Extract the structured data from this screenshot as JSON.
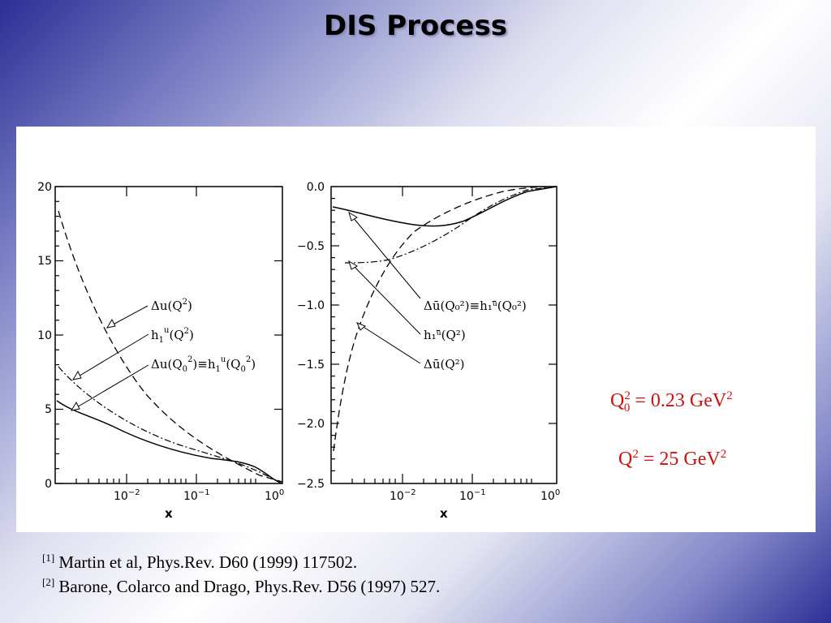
{
  "slide": {
    "title": "DIS Process"
  },
  "figure": {
    "left_plot": {
      "y_ticks": [
        "0",
        "5",
        "10",
        "15",
        "20"
      ],
      "x_ticks": [
        "10",
        "10",
        "10"
      ],
      "x_tick_exponents": [
        "−2",
        "−1",
        "0"
      ],
      "x_label": "x",
      "labels": [
        {
          "main": "Δu(Q",
          "sup": "2",
          "rest": ")"
        },
        {
          "main": "h",
          "sub": "1",
          "sup": "u",
          "rest": "(Q²)"
        },
        {
          "main": "Δu(Q",
          "sub": "0",
          "sup": "2",
          "rest": ")≡h₁ᵘ(Q₀²)"
        }
      ]
    },
    "right_plot": {
      "y_ticks": [
        "0.0",
        "−0.5",
        "−1.0",
        "−1.5",
        "−2.0",
        "−2.5"
      ],
      "x_ticks": [
        "10",
        "10",
        "10"
      ],
      "x_tick_exponents": [
        "−2",
        "−1",
        "0"
      ],
      "x_label": "x",
      "labels": [
        {
          "text": "Δū(Q₀²)≡h₁ᵘ̄(Q₀²)"
        },
        {
          "text": "h₁ᵘ̄(Q²)"
        },
        {
          "text": "Δū(Q²)"
        }
      ]
    },
    "equations": {
      "q0": {
        "base": "Q",
        "sub": "0",
        "sup": "2",
        "rhs": "= 0.23 GeV",
        "rhs_sup": "2"
      },
      "q": {
        "base": "Q",
        "sup": "2",
        "rhs": "= 25 GeV",
        "rhs_sup": "2"
      }
    }
  },
  "references": [
    {
      "num": "[1]",
      "text": "Martin et al, Phys.Rev. D60 (1999) 117502."
    },
    {
      "num": "[2]",
      "text": "Barone, Colarco and Drago, Phys.Rev. D56 (1997) 527."
    }
  ],
  "colors": {
    "equation_red": "#d01010"
  }
}
